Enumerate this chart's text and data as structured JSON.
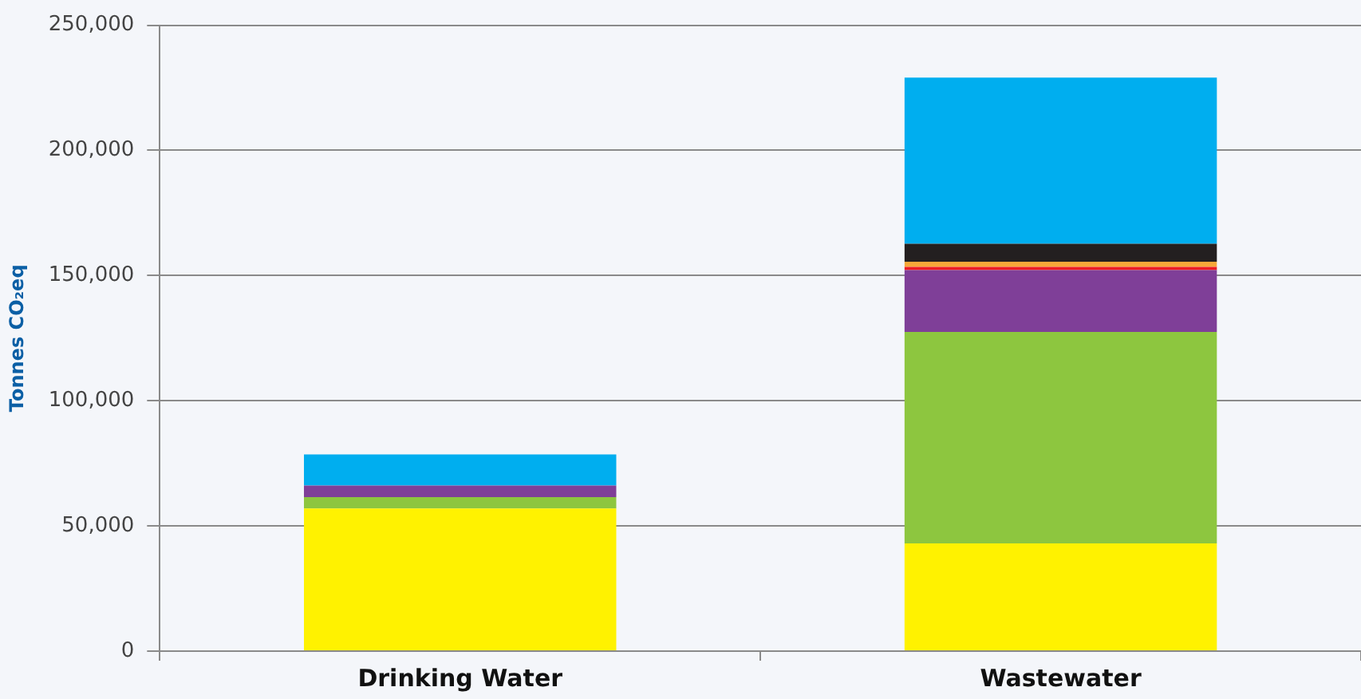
{
  "chart_data": {
    "type": "bar",
    "ylabel": "Tonnes CO₂eq",
    "categories": [
      "Drinking Water",
      "Wastewater"
    ],
    "stacked": true,
    "grid": "y",
    "legend": false,
    "ylim": [
      0,
      250000
    ],
    "yticks": [
      {
        "value": 0,
        "label": "0"
      },
      {
        "value": 50000,
        "label": "50,000"
      },
      {
        "value": 100000,
        "label": "100,000"
      },
      {
        "value": 150000,
        "label": "150,000"
      },
      {
        "value": 200000,
        "label": "200,000"
      },
      {
        "value": 250000,
        "label": "250,000"
      }
    ],
    "series": [
      {
        "color": "#fff200",
        "values": [
          57000,
          43000
        ]
      },
      {
        "color": "#8dc63f",
        "values": [
          4500,
          84500
        ]
      },
      {
        "color": "#7f3f98",
        "values": [
          4600,
          24700
        ]
      },
      {
        "color": "#ed1c24",
        "values": [
          null,
          1300
        ]
      },
      {
        "color": "#f7a839",
        "values": [
          null,
          2000
        ]
      },
      {
        "color": "#231f20",
        "values": [
          null,
          7200
        ]
      },
      {
        "color": "#00aeef",
        "values": [
          12500,
          66400
        ]
      }
    ]
  }
}
